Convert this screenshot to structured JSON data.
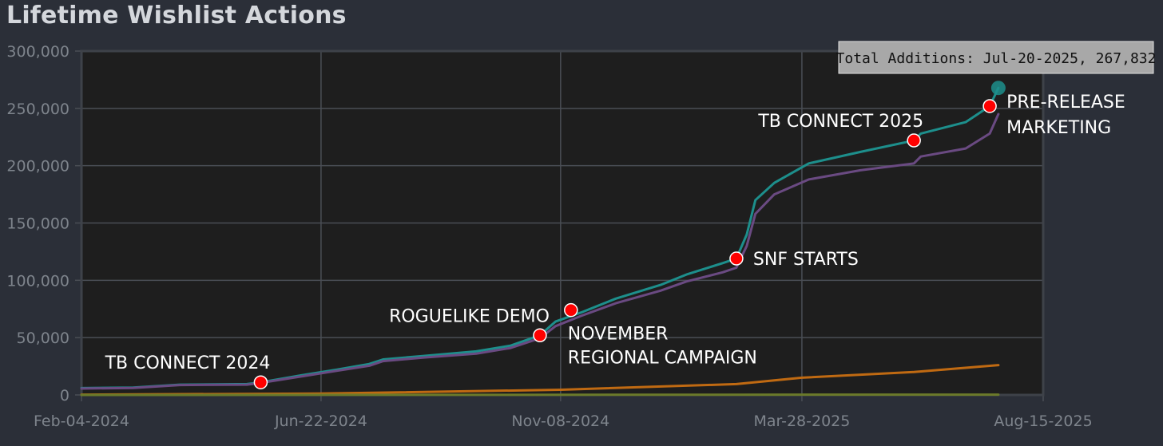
{
  "chart_data": {
    "type": "line",
    "title": "Lifetime Wishlist Actions",
    "xlabel": "",
    "ylabel": "",
    "ylim": [
      0,
      300000
    ],
    "xlim": [
      "2024-02-04",
      "2025-08-15"
    ],
    "grid": true,
    "y_ticks": [
      "0",
      "50,000",
      "100,000",
      "150,000",
      "200,000",
      "250,000",
      "300,000"
    ],
    "x_ticks": [
      {
        "date": "2024-02-04",
        "label": "Feb-04-2024"
      },
      {
        "date": "2024-06-22",
        "label": "Jun-22-2024"
      },
      {
        "date": "2024-11-08",
        "label": "Nov-08-2024"
      },
      {
        "date": "2025-03-28",
        "label": "Mar-28-2025"
      },
      {
        "date": "2025-08-15",
        "label": "Aug-15-2025"
      }
    ],
    "series": [
      {
        "color": "#1d8f8c",
        "points": [
          [
            "2024-02-04",
            6000
          ],
          [
            "2024-03-05",
            6500
          ],
          [
            "2024-04-01",
            9000
          ],
          [
            "2024-05-10",
            9500
          ],
          [
            "2024-05-18",
            11000
          ],
          [
            "2024-06-10",
            17000
          ],
          [
            "2024-07-01",
            22000
          ],
          [
            "2024-07-20",
            27000
          ],
          [
            "2024-07-28",
            31000
          ],
          [
            "2024-08-20",
            34000
          ],
          [
            "2024-09-20",
            38000
          ],
          [
            "2024-10-10",
            43000
          ],
          [
            "2024-10-27",
            52000
          ],
          [
            "2024-11-05",
            64000
          ],
          [
            "2024-11-20",
            72000
          ],
          [
            "2024-12-10",
            84000
          ],
          [
            "2025-01-05",
            96000
          ],
          [
            "2025-01-20",
            105000
          ],
          [
            "2025-02-10",
            115000
          ],
          [
            "2025-02-18",
            119000
          ],
          [
            "2025-02-24",
            140000
          ],
          [
            "2025-03-01",
            170000
          ],
          [
            "2025-03-12",
            185000
          ],
          [
            "2025-04-01",
            202000
          ],
          [
            "2025-05-01",
            212000
          ],
          [
            "2025-06-01",
            222000
          ],
          [
            "2025-06-05",
            228000
          ],
          [
            "2025-07-01",
            238000
          ],
          [
            "2025-07-15",
            252000
          ],
          [
            "2025-07-20",
            267832
          ]
        ]
      },
      {
        "color": "#6a4a82",
        "points": [
          [
            "2024-02-04",
            5600
          ],
          [
            "2024-03-05",
            6100
          ],
          [
            "2024-04-01",
            8600
          ],
          [
            "2024-05-10",
            9000
          ],
          [
            "2024-05-18",
            10500
          ],
          [
            "2024-06-10",
            16000
          ],
          [
            "2024-07-01",
            21000
          ],
          [
            "2024-07-20",
            25500
          ],
          [
            "2024-07-28",
            29500
          ],
          [
            "2024-08-20",
            32500
          ],
          [
            "2024-09-20",
            36000
          ],
          [
            "2024-10-10",
            41000
          ],
          [
            "2024-10-27",
            49500
          ],
          [
            "2024-11-05",
            60000
          ],
          [
            "2024-11-20",
            69000
          ],
          [
            "2024-12-10",
            80000
          ],
          [
            "2025-01-05",
            91000
          ],
          [
            "2025-01-20",
            99000
          ],
          [
            "2025-02-10",
            107000
          ],
          [
            "2025-02-18",
            111000
          ],
          [
            "2025-02-24",
            130000
          ],
          [
            "2025-03-01",
            158000
          ],
          [
            "2025-03-12",
            175000
          ],
          [
            "2025-04-01",
            188000
          ],
          [
            "2025-05-01",
            196000
          ],
          [
            "2025-06-01",
            202000
          ],
          [
            "2025-06-05",
            208000
          ],
          [
            "2025-07-01",
            215000
          ],
          [
            "2025-07-15",
            228000
          ],
          [
            "2025-07-20",
            245000
          ]
        ]
      },
      {
        "color": "#c06a12",
        "points": [
          [
            "2024-02-04",
            300
          ],
          [
            "2024-06-22",
            1200
          ],
          [
            "2024-11-08",
            4500
          ],
          [
            "2025-02-18",
            9500
          ],
          [
            "2025-03-28",
            15000
          ],
          [
            "2025-06-01",
            20000
          ],
          [
            "2025-07-20",
            26000
          ]
        ]
      },
      {
        "color": "#6b7a2a",
        "points": [
          [
            "2024-02-04",
            0
          ],
          [
            "2025-07-20",
            300
          ]
        ]
      }
    ],
    "annotations": [
      {
        "date": "2024-05-18",
        "value": 11000,
        "lines": [
          "TB CONNECT 2024"
        ],
        "anchor": "above-left"
      },
      {
        "date": "2024-10-27",
        "value": 52000,
        "lines": [
          "ROGUELIKE DEMO"
        ],
        "anchor": "above-left"
      },
      {
        "date": "2024-11-14",
        "value": 74000,
        "lines": [
          "NOVEMBER",
          "REGIONAL CAMPAIGN"
        ],
        "anchor": "below-right"
      },
      {
        "date": "2025-02-18",
        "value": 119000,
        "lines": [
          "SNF STARTS"
        ],
        "anchor": "right"
      },
      {
        "date": "2025-06-01",
        "value": 222000,
        "lines": [
          "TB CONNECT 2025"
        ],
        "anchor": "above-left"
      },
      {
        "date": "2025-07-15",
        "value": 252000,
        "lines": [
          "PRE-RELEASE",
          "MARKETING"
        ],
        "anchor": "right"
      }
    ],
    "tooltip": {
      "text": "Total Additions: Jul-20-2025, 267,832",
      "date": "2025-07-20",
      "value": 267832
    }
  },
  "colors": {
    "background": "#2b2f38",
    "plot_background": "#1e1e1e",
    "grid": "#4a4e55",
    "marker": "#ff0000",
    "tooltip_bg": "#a8a8a8",
    "highlight_point": "#1d8f8c"
  }
}
